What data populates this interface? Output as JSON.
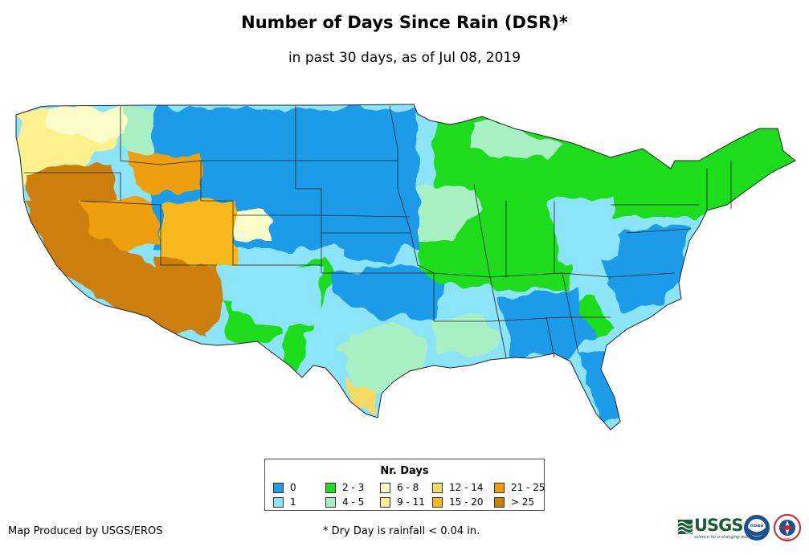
{
  "title": "Number of Days Since Rain (DSR)*",
  "subtitle": "in past 30 days, as of Jul 08, 2019",
  "legend": {
    "title": "Nr. Days",
    "items": [
      {
        "label": "0",
        "color": "#1e9be9"
      },
      {
        "label": "1",
        "color": "#8ce4f8"
      },
      {
        "label": "2 - 3",
        "color": "#1fdc1f"
      },
      {
        "label": "4 - 5",
        "color": "#a8f0c4"
      },
      {
        "label": "6 - 8",
        "color": "#fcfcc8"
      },
      {
        "label": "9 - 11",
        "color": "#fbf28e"
      },
      {
        "label": "12 - 14",
        "color": "#f7da63"
      },
      {
        "label": "15 - 20",
        "color": "#f7b81a"
      },
      {
        "label": "21 - 25",
        "color": "#ee9f10"
      },
      {
        "label": "> 25",
        "color": "#cc7f0d"
      }
    ]
  },
  "producer": "Map Produced by USGS/EROS",
  "footnote": "* Dry Day is rainfall < 0.04 in.",
  "logos": {
    "usgs": "USGS",
    "usgs_tagline": "science for a changing world",
    "noaa": "noaa",
    "nws": "NWS"
  }
}
